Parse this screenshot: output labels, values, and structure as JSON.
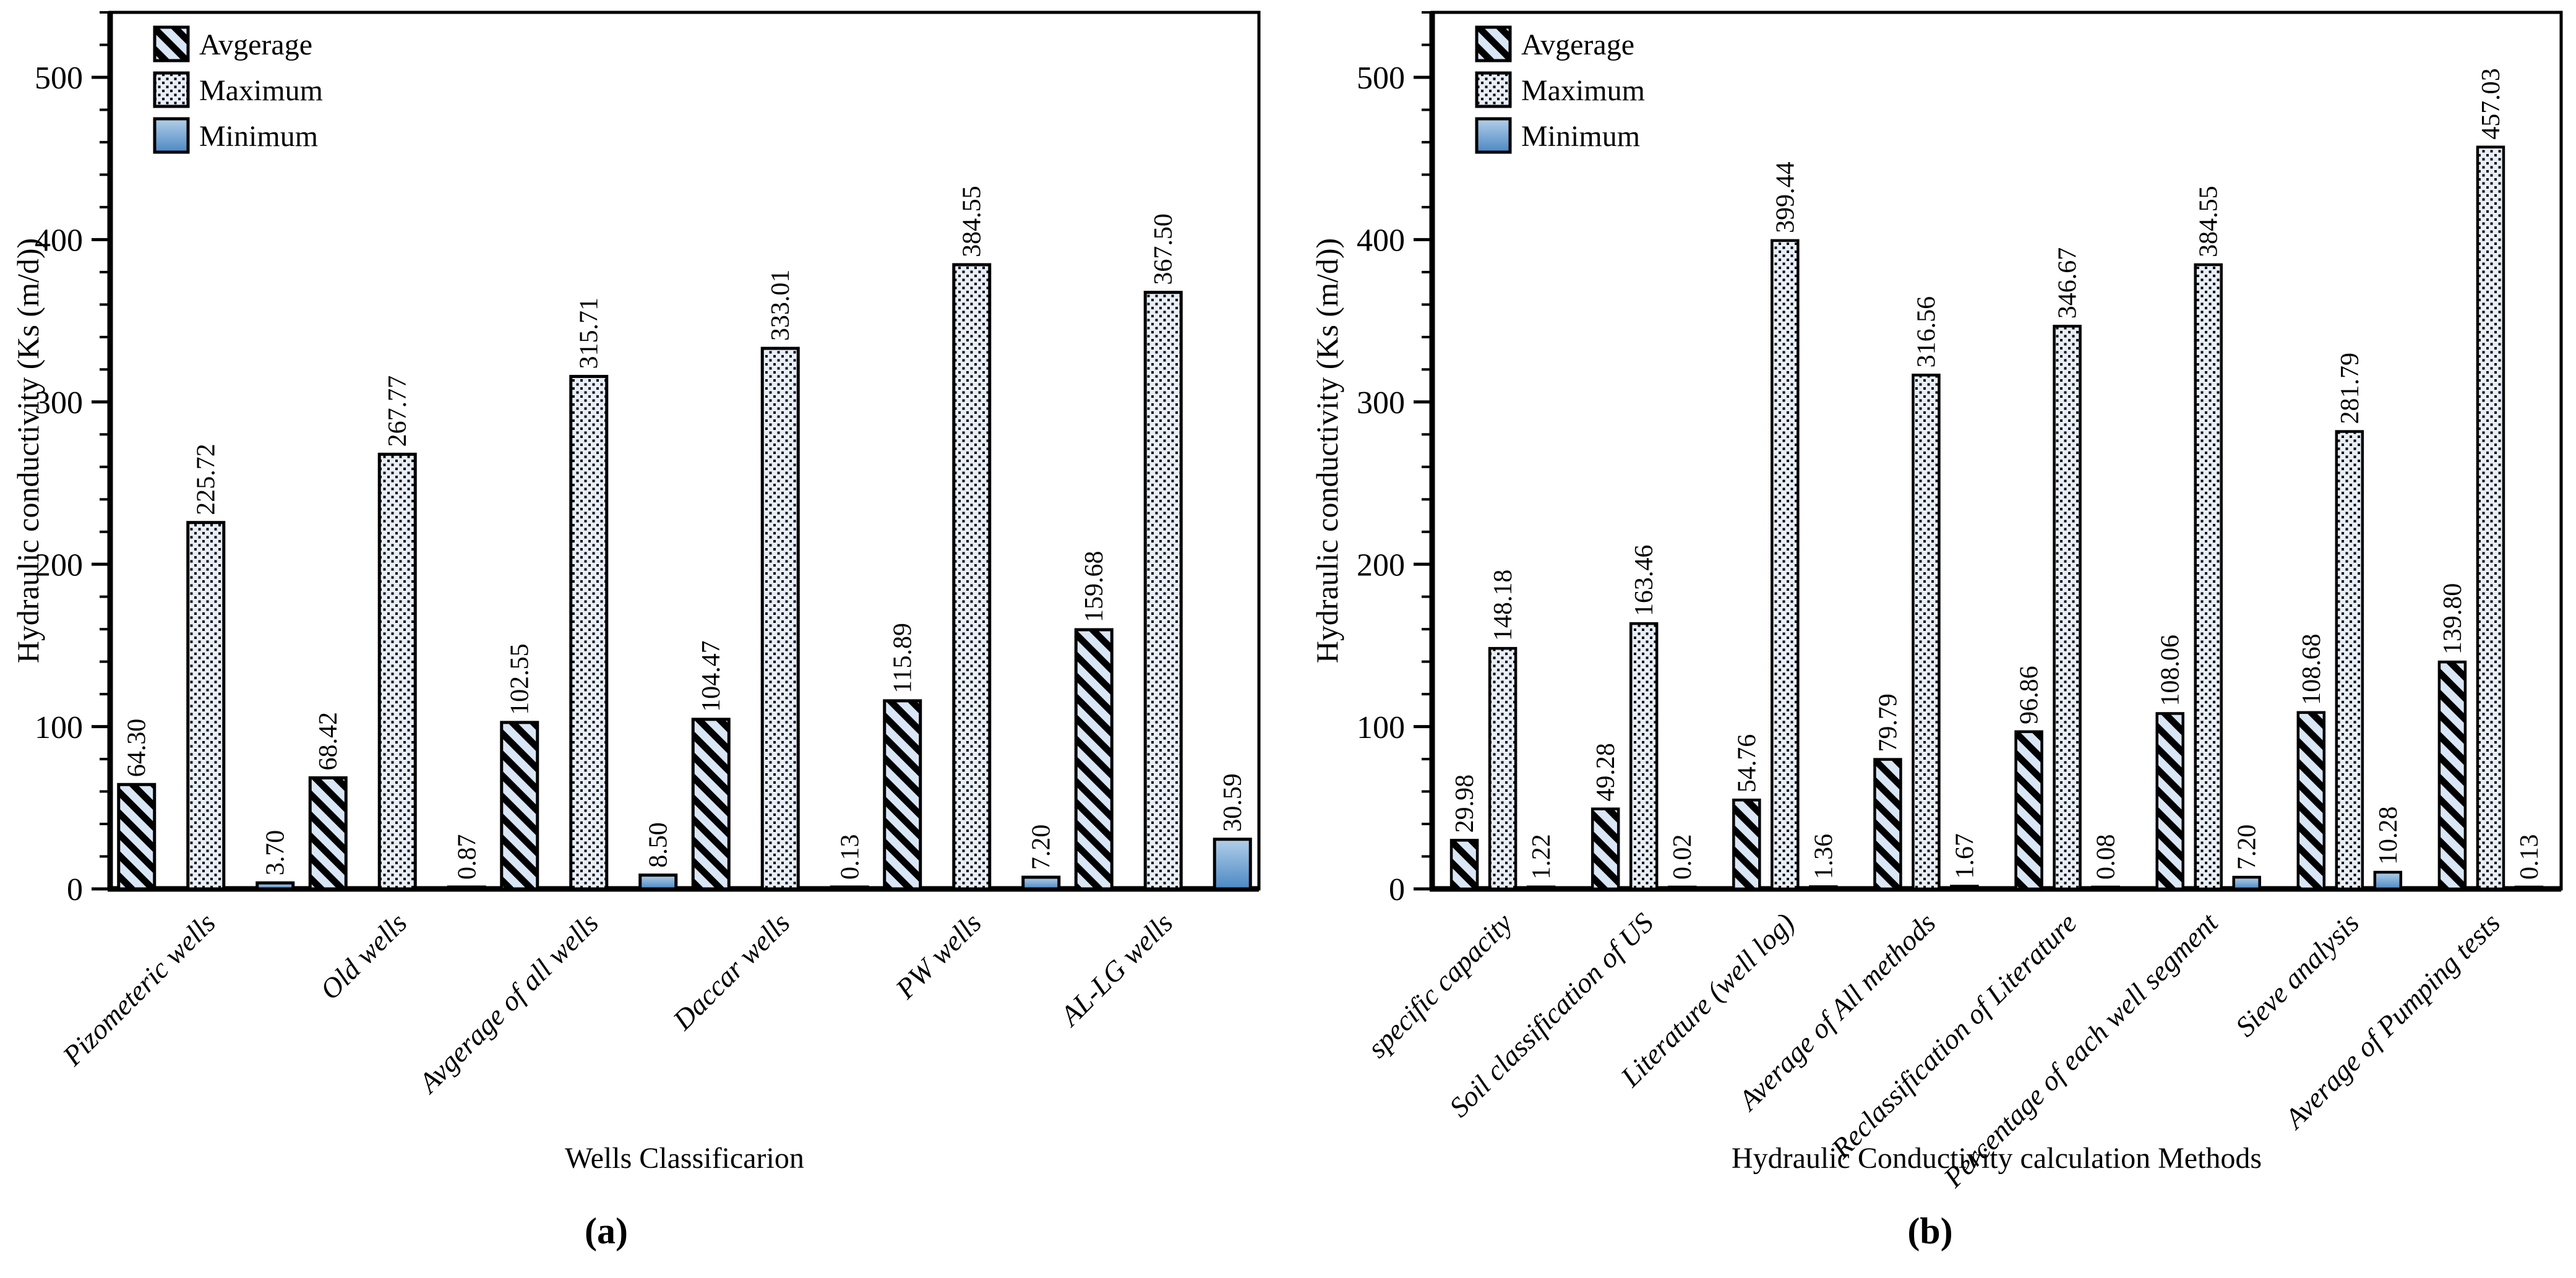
{
  "figure": {
    "caption_a": "(a)",
    "caption_b": "(b)"
  },
  "legend": {
    "items": [
      {
        "key": "average",
        "label": "Avgerage",
        "swatch": "diagonal-hatch-icon"
      },
      {
        "key": "maximum",
        "label": "Maximum",
        "swatch": "dot-hatch-icon"
      },
      {
        "key": "minimum",
        "label": "Minimum",
        "swatch": "blue-gradient-icon"
      }
    ],
    "position": "top-left"
  },
  "colors": {
    "hatch_bg": "#d9e6f5",
    "dot_bg": "#e8eef7",
    "min_top": "#b3cfe9",
    "min_bottom": "#4c88c4",
    "outline": "#000000"
  },
  "chart_data": [
    {
      "id": "a",
      "type": "bar",
      "caption": "(a)",
      "xlabel": "Wells Classificarion",
      "ylabel": "Hydraulic conductivity (Ks (m/d))",
      "ylim": [
        0,
        540
      ],
      "yticks": [
        0,
        100,
        200,
        300,
        400,
        500
      ],
      "minor_tick_step": 20,
      "grid": false,
      "legend_position": "top-left",
      "categories": [
        "Pizometeric wells",
        "Old wells",
        "Avgerage of all wells",
        "Daccar wells",
        "PW wells",
        "AL-LG wells"
      ],
      "series": [
        {
          "name": "Avgerage",
          "values": [
            64.3,
            68.42,
            102.55,
            104.47,
            115.89,
            159.68
          ]
        },
        {
          "name": "Maximum",
          "values": [
            225.72,
            267.77,
            315.71,
            333.01,
            384.55,
            367.5
          ]
        },
        {
          "name": "Minimum",
          "values": [
            3.7,
            0.87,
            8.5,
            0.13,
            7.2,
            30.59
          ]
        }
      ]
    },
    {
      "id": "b",
      "type": "bar",
      "caption": "(b)",
      "xlabel": "Hydraulic Conductivity calculation Methods",
      "ylabel": "Hydraulic conductivity (Ks (m/d))",
      "ylim": [
        0,
        540
      ],
      "yticks": [
        0,
        100,
        200,
        300,
        400,
        500
      ],
      "minor_tick_step": 20,
      "grid": false,
      "legend_position": "top-left",
      "categories": [
        "specific capacity",
        "Soil classification of US",
        "Literature (well log)",
        "Average of All methods",
        "Reclassification of Literature",
        "Percentage of each well segment",
        "Sieve analysis",
        "Average of Pumping tests"
      ],
      "series": [
        {
          "name": "Avgerage",
          "values": [
            29.98,
            49.28,
            54.76,
            79.79,
            96.86,
            108.06,
            108.68,
            139.8
          ]
        },
        {
          "name": "Maximum",
          "values": [
            148.18,
            163.46,
            399.44,
            316.56,
            346.67,
            384.55,
            281.79,
            457.03
          ]
        },
        {
          "name": "Minimum",
          "values": [
            1.22,
            0.02,
            1.36,
            1.67,
            0.08,
            7.2,
            10.28,
            0.13
          ]
        }
      ]
    }
  ]
}
